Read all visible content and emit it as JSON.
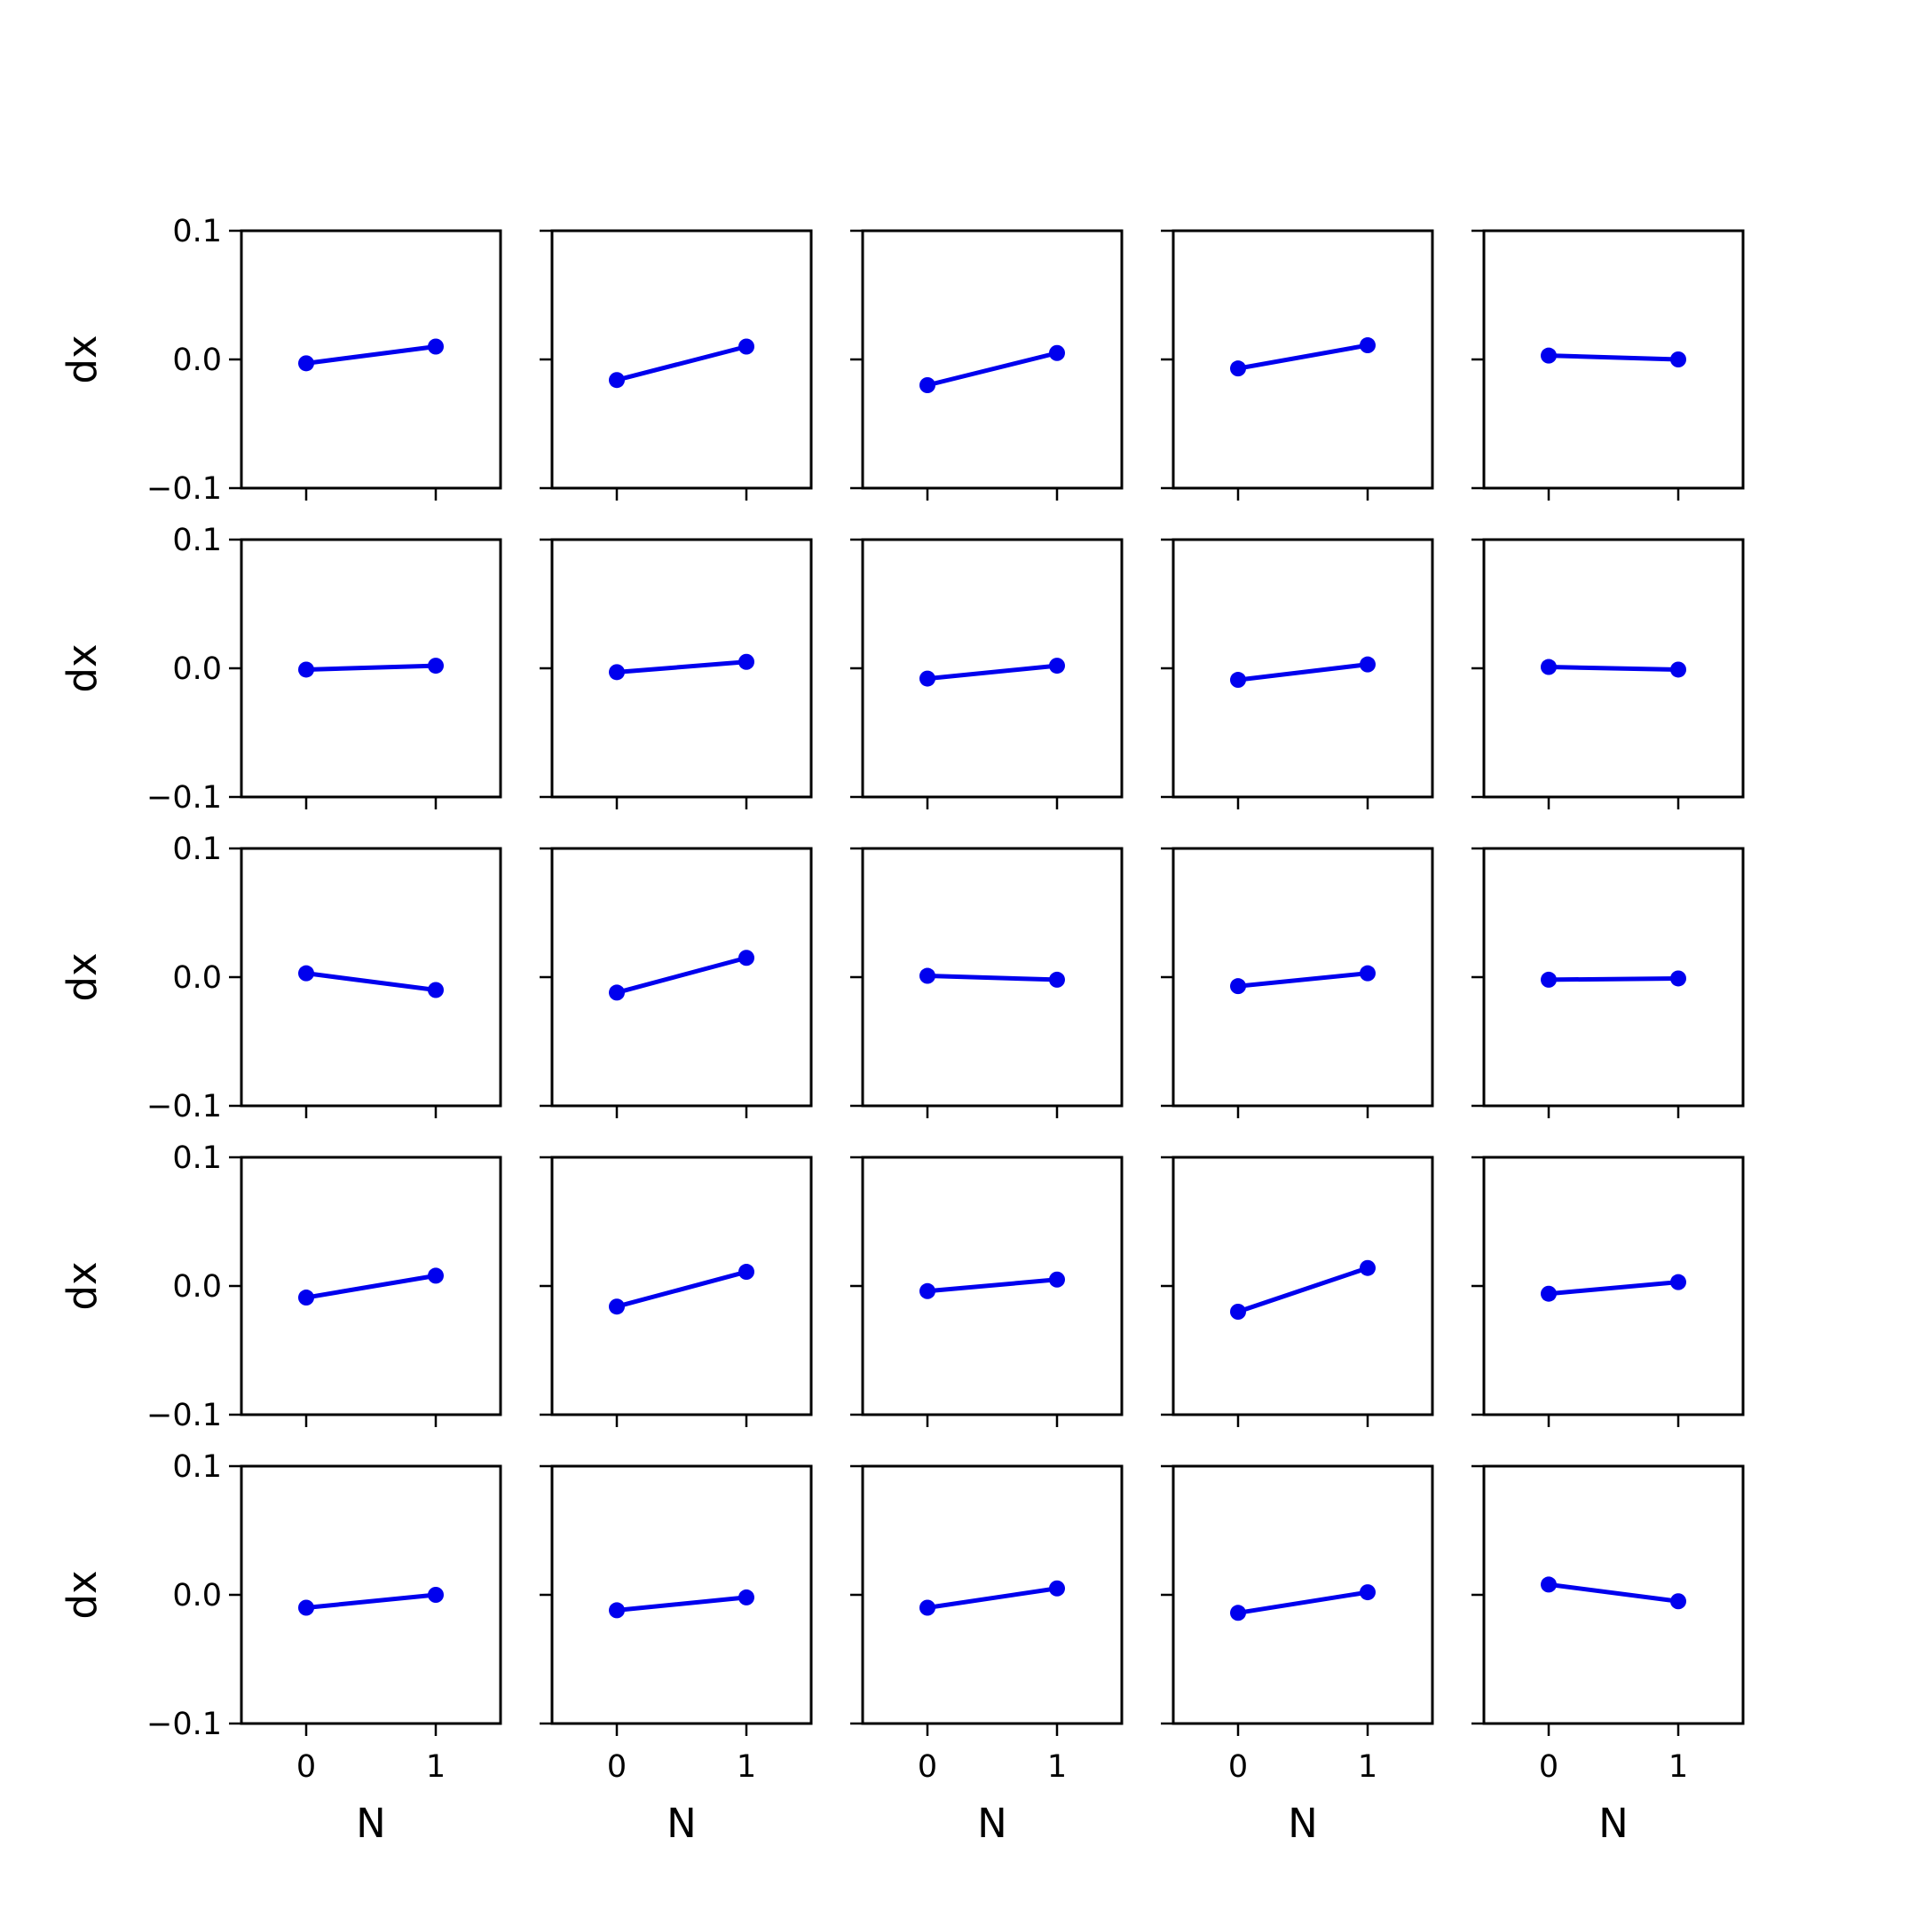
{
  "figure": {
    "grid_rows": 5,
    "grid_cols": 5,
    "sharex": true,
    "sharey": true
  },
  "chart_data": {
    "type": "line",
    "xlabel": "N",
    "ylabel": "dx",
    "xlim": [
      -0.5,
      1.5
    ],
    "ylim": [
      -0.1,
      0.1
    ],
    "xticks": [
      0,
      1
    ],
    "xtick_labels": [
      "0",
      "1"
    ],
    "yticks": [
      0.1,
      0.0,
      -0.1
    ],
    "ytick_labels": [
      "0.1",
      "0.0",
      "−0.1"
    ],
    "grid": false,
    "legend": "none",
    "color": "#0000ee",
    "marker": "circle",
    "x": [
      0,
      1
    ],
    "panels": [
      [
        [
          -0.003,
          0.01
        ],
        [
          -0.016,
          0.01
        ],
        [
          -0.02,
          0.005
        ],
        [
          -0.007,
          0.011
        ],
        [
          0.003,
          0.0
        ]
      ],
      [
        [
          -0.001,
          0.002
        ],
        [
          -0.003,
          0.005
        ],
        [
          -0.008,
          0.002
        ],
        [
          -0.009,
          0.003
        ],
        [
          0.001,
          -0.001
        ]
      ],
      [
        [
          0.003,
          -0.01
        ],
        [
          -0.012,
          0.015
        ],
        [
          0.001,
          -0.002
        ],
        [
          -0.007,
          0.003
        ],
        [
          -0.002,
          -0.001
        ]
      ],
      [
        [
          -0.009,
          0.008
        ],
        [
          -0.016,
          0.011
        ],
        [
          -0.004,
          0.005
        ],
        [
          -0.02,
          0.014
        ],
        [
          -0.006,
          0.003
        ]
      ],
      [
        [
          -0.01,
          0.0
        ],
        [
          -0.012,
          -0.002
        ],
        [
          -0.01,
          0.005
        ],
        [
          -0.014,
          0.002
        ],
        [
          0.008,
          -0.005
        ]
      ]
    ]
  }
}
